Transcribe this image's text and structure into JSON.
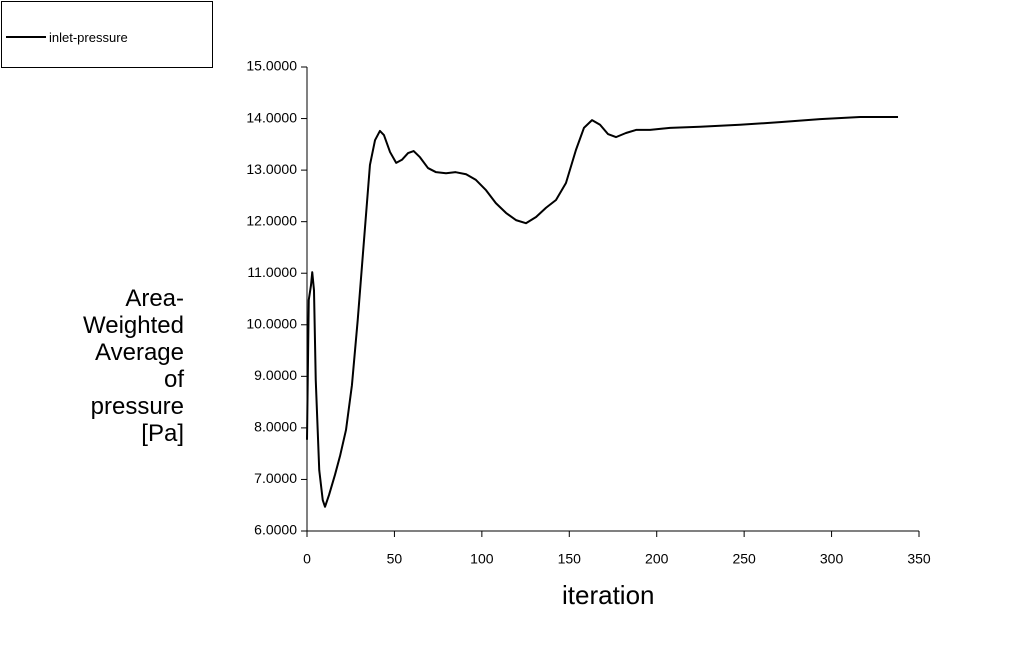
{
  "chart_data": {
    "type": "line",
    "xlabel": "iteration",
    "ylabel": "Area-Weighted Average of pressure [Pa]",
    "legend": "top-left",
    "x": [
      0,
      1,
      2.3,
      3,
      4,
      5,
      7,
      9,
      10.3,
      12.6,
      16,
      19,
      22.3,
      25.7,
      29,
      32.6,
      36,
      38.9,
      41.7,
      44,
      47.5,
      51,
      54.3,
      57.8,
      61,
      64.6,
      69.2,
      73.8,
      79.5,
      85,
      91,
      96.6,
      102.4,
      108,
      113.8,
      119.5,
      125.2,
      131,
      136.7,
      142.4,
      148.1,
      153.8,
      158.4,
      163,
      167.6,
      172.1,
      176.7,
      182.4,
      188.2,
      196.2,
      207.6,
      224.8,
      247.6,
      270.5,
      293.4,
      316.3,
      338
    ],
    "series": [
      {
        "name": "inlet-pressure",
        "color": "#000000",
        "values": [
          7.77,
          10.48,
          10.77,
          11.02,
          10.67,
          8.93,
          7.18,
          6.6,
          6.47,
          6.7,
          7.09,
          7.47,
          7.96,
          8.83,
          10.09,
          11.64,
          13.1,
          13.58,
          13.76,
          13.68,
          13.35,
          13.14,
          13.2,
          13.33,
          13.37,
          13.25,
          13.04,
          12.96,
          12.94,
          12.96,
          12.92,
          12.81,
          12.61,
          12.36,
          12.17,
          12.03,
          11.97,
          12.09,
          12.27,
          12.42,
          12.75,
          13.39,
          13.82,
          13.97,
          13.88,
          13.7,
          13.64,
          13.72,
          13.78,
          13.78,
          13.82,
          13.84,
          13.88,
          13.93,
          13.99,
          14.03,
          14.03
        ]
      }
    ],
    "xlim": [
      0,
      350
    ],
    "xticks": [
      0,
      50,
      100,
      150,
      200,
      250,
      300,
      350
    ],
    "ylim": [
      6,
      15
    ],
    "yticks": [
      {
        "value": 6,
        "label": "6.0000"
      },
      {
        "value": 7,
        "label": "7.0000"
      },
      {
        "value": 8,
        "label": "8.0000"
      },
      {
        "value": 9,
        "label": "9.0000"
      },
      {
        "value": 10,
        "label": "10.0000"
      },
      {
        "value": 11,
        "label": "11.0000"
      },
      {
        "value": 12,
        "label": "12.0000"
      },
      {
        "value": 13,
        "label": "13.0000"
      },
      {
        "value": 14,
        "label": "14.0000"
      },
      {
        "value": 15,
        "label": "15.0000"
      }
    ]
  }
}
